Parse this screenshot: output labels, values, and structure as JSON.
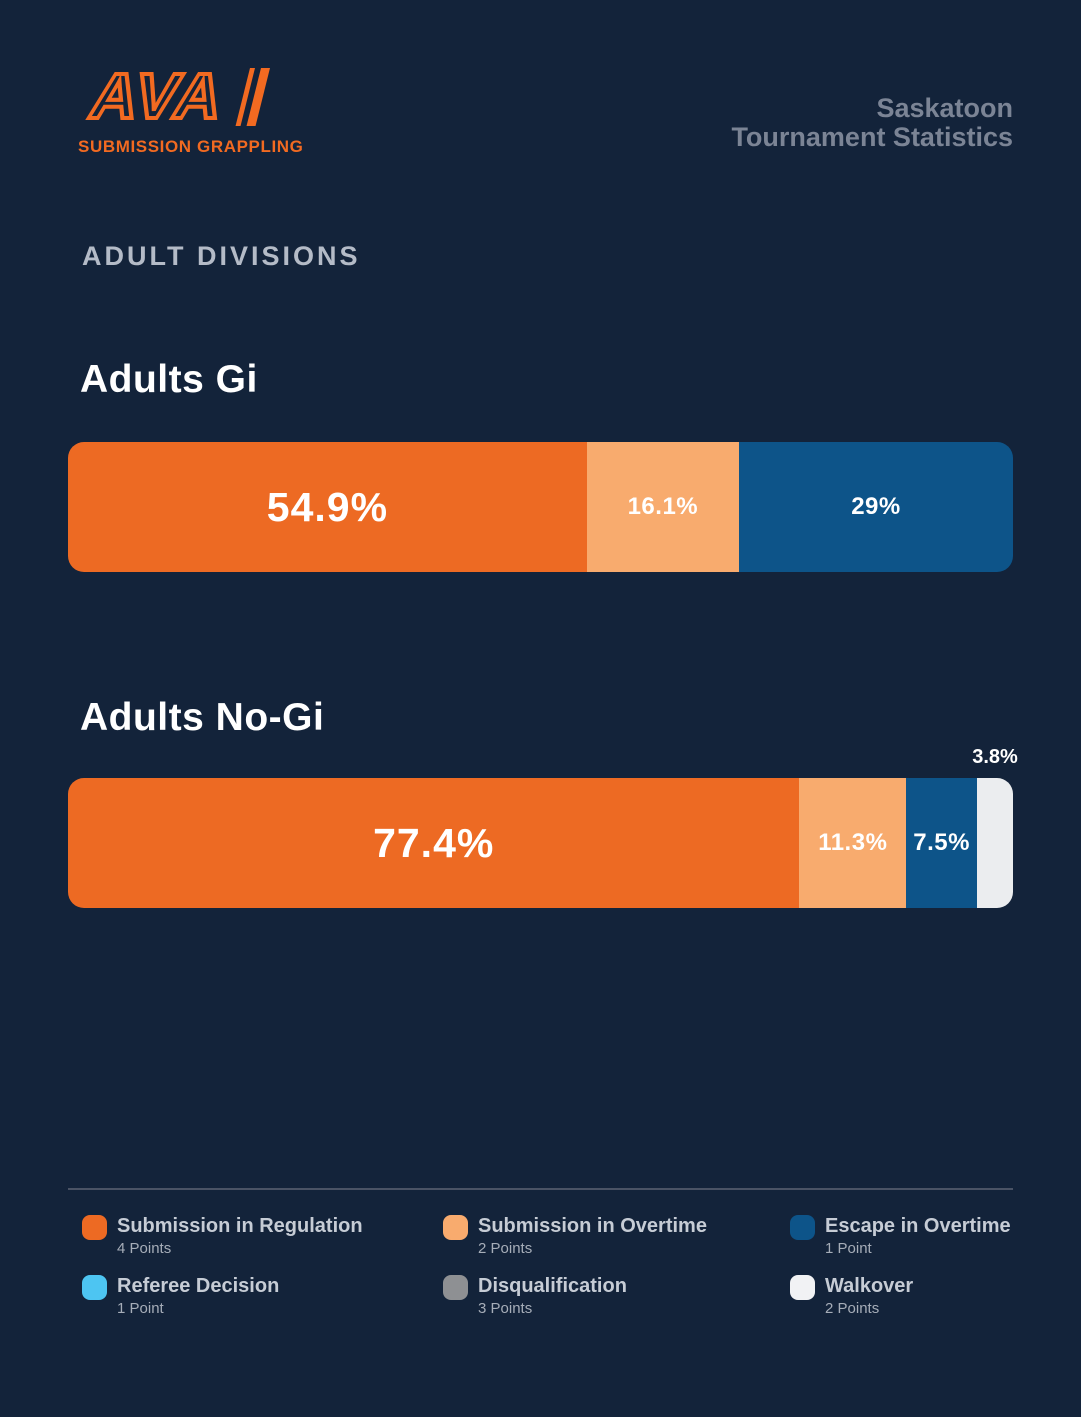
{
  "colors": {
    "background": "#13233A",
    "submission_regulation": "#ED6A23",
    "submission_overtime": "#F8AB6E",
    "escape_overtime": "#0D5489",
    "referee_decision": "#4DC5F2",
    "disqualification": "#8E9093",
    "walkover": "#F1F2F4",
    "logo_orange": "#F26A21",
    "header_text": "#7B8495"
  },
  "header": {
    "logo_text": "AVA",
    "logo_subtext": "SUBMISSION GRAPPLING",
    "title_line1": "Saskatoon",
    "title_line2": "Tournament Statistics"
  },
  "section_label": "ADULT DIVISIONS",
  "chart_data": [
    {
      "type": "bar",
      "orientation": "horizontal-stacked",
      "title": "Adults Gi",
      "unit": "%",
      "segments": [
        {
          "name": "Submission in Regulation",
          "value": 54.9,
          "label": "54.9%",
          "color": "#ED6A23",
          "label_size": "large"
        },
        {
          "name": "Submission in Overtime",
          "value": 16.1,
          "label": "16.1%",
          "color": "#F8AB6E"
        },
        {
          "name": "Escape in Overtime",
          "value": 29,
          "label": "29%",
          "color": "#0D5489"
        }
      ]
    },
    {
      "type": "bar",
      "orientation": "horizontal-stacked",
      "title": "Adults No-Gi",
      "unit": "%",
      "segments": [
        {
          "name": "Submission in Regulation",
          "value": 77.4,
          "label": "77.4%",
          "color": "#ED6A23",
          "label_size": "large"
        },
        {
          "name": "Submission in Overtime",
          "value": 11.3,
          "label": "11.3%",
          "color": "#F8AB6E"
        },
        {
          "name": "Escape in Overtime",
          "value": 7.5,
          "label": "7.5%",
          "color": "#0D5489"
        },
        {
          "name": "Walkover",
          "value": 3.8,
          "label": "3.8%",
          "color": "#EBEDEF",
          "label_outside": true
        }
      ]
    }
  ],
  "legend": {
    "items": [
      {
        "label": "Submission in Regulation",
        "points": "4 Points",
        "color": "#ED6A23"
      },
      {
        "label": "Submission in Overtime",
        "points": "2 Points",
        "color": "#F8AB6E"
      },
      {
        "label": "Escape in Overtime",
        "points": "1 Point",
        "color": "#0D5489"
      },
      {
        "label": "Referee Decision",
        "points": "1 Point",
        "color": "#4DC5F2"
      },
      {
        "label": "Disqualification",
        "points": "3 Points",
        "color": "#8E9093"
      },
      {
        "label": "Walkover",
        "points": "2 Points",
        "color": "#F1F2F4"
      }
    ]
  }
}
